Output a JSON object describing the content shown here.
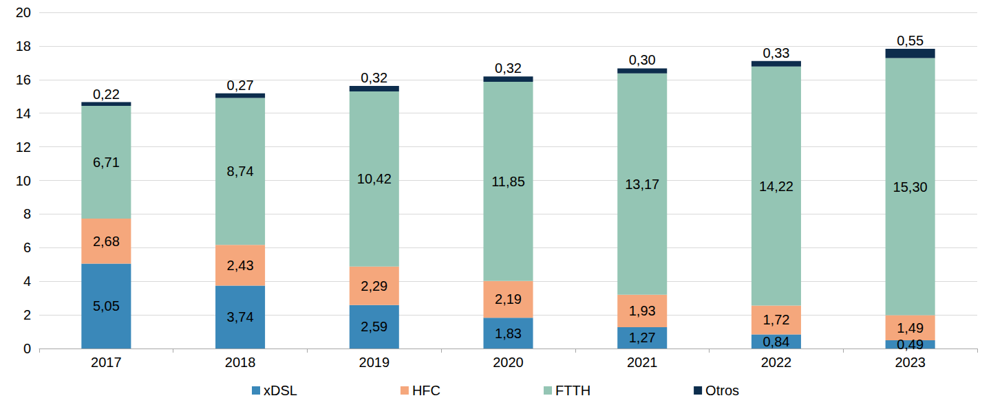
{
  "chart_data": {
    "type": "bar",
    "categories": [
      "2017",
      "2018",
      "2019",
      "2020",
      "2021",
      "2022",
      "2023"
    ],
    "series": [
      {
        "name": "xDSL",
        "color": "#3a88b9",
        "values": [
          5.05,
          3.74,
          2.59,
          1.83,
          1.27,
          0.84,
          0.49
        ],
        "value_labels": [
          "5,05",
          "3,74",
          "2,59",
          "1,83",
          "1,27",
          "0,84",
          "0,49"
        ]
      },
      {
        "name": "HFC",
        "color": "#f5a77c",
        "values": [
          2.68,
          2.43,
          2.29,
          2.19,
          1.93,
          1.72,
          1.49
        ],
        "value_labels": [
          "2,68",
          "2,43",
          "2,29",
          "2,19",
          "1,93",
          "1,72",
          "1,49"
        ]
      },
      {
        "name": "FTTH",
        "color": "#94c5b4",
        "values": [
          6.71,
          8.74,
          10.42,
          11.85,
          13.17,
          14.22,
          15.3
        ],
        "value_labels": [
          "6,71",
          "8,74",
          "10,42",
          "11,85",
          "13,17",
          "14,22",
          "15,30"
        ]
      },
      {
        "name": "Otros",
        "color": "#0d2d4d",
        "values": [
          0.22,
          0.27,
          0.32,
          0.32,
          0.3,
          0.33,
          0.55
        ],
        "value_labels": [
          "0,22",
          "0,27",
          "0,32",
          "0,32",
          "0,30",
          "0,33",
          "0,55"
        ]
      }
    ],
    "ylim": [
      0,
      20
    ],
    "yticks": [
      0,
      2,
      4,
      6,
      8,
      10,
      12,
      14,
      16,
      18,
      20
    ],
    "grid": true,
    "stacked": true,
    "data_labels": true,
    "legend": "bottom"
  }
}
